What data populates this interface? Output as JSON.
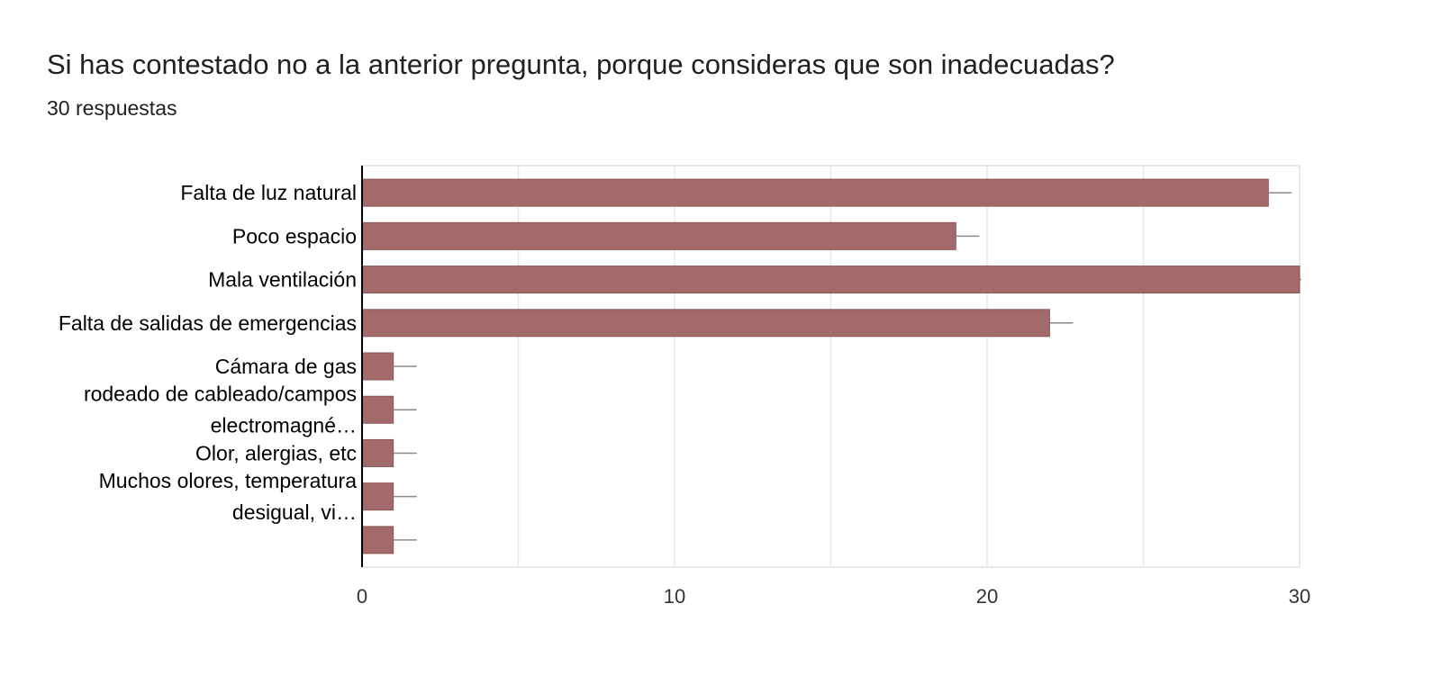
{
  "header": {
    "title": "Si has contestado no a la anterior pregunta, porque consideras que son inadecuadas?",
    "subtitle": "30 respuestas"
  },
  "colors": {
    "bar": "#a26a6a",
    "bar_stroke": "#8c5555",
    "grid": "#e8e8e8",
    "axis": "#000000"
  },
  "chart_data": {
    "type": "bar",
    "orientation": "horizontal",
    "title": "Si has contestado no a la anterior pregunta, porque consideras que son inadecuadas?",
    "xlabel": "",
    "ylabel": "",
    "xlim": [
      0,
      30
    ],
    "x_ticks": [
      0,
      10,
      20,
      30
    ],
    "grid": true,
    "categories": [
      [
        "Falta de luz natural"
      ],
      [
        "Poco espacio"
      ],
      [
        "Mala ventilación"
      ],
      [
        "Falta de salidas de emergencias"
      ],
      [
        "Cámara de gas"
      ],
      [
        "rodeado de cableado/campos",
        "electromagné…"
      ],
      [
        "Olor, alergias, etc"
      ],
      [
        "Muchos olores, temperatura",
        "desigual, vi…"
      ],
      [
        ""
      ]
    ],
    "values": [
      29,
      19,
      30,
      22,
      1,
      1,
      1,
      1,
      1
    ]
  }
}
